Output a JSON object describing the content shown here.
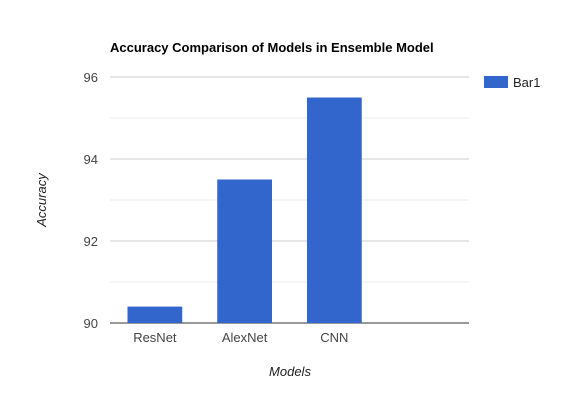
{
  "chart_data": {
    "type": "bar",
    "title": "Accuracy Comparison of Models in Ensemble Model",
    "xlabel": "Models",
    "ylabel": "Accuracy",
    "categories": [
      "ResNet",
      "AlexNet",
      "CNN",
      ""
    ],
    "series": [
      {
        "name": "Bar1",
        "values": [
          90.4,
          93.5,
          95.5,
          null
        ],
        "color": "#3366cc"
      }
    ],
    "ylim": [
      90,
      96
    ],
    "yticks": [
      "90",
      "92",
      "94",
      "96"
    ],
    "grid": true,
    "legend_position": "right"
  }
}
